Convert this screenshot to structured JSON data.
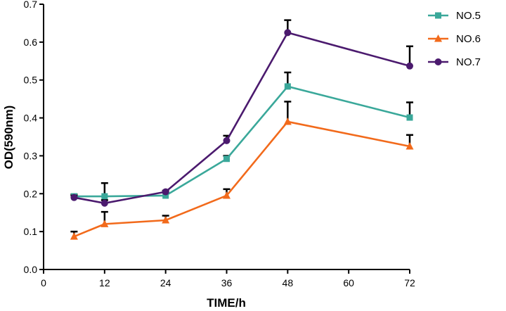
{
  "chart_data": {
    "type": "line",
    "title": "",
    "xlabel": "TIME/h",
    "ylabel": "OD(590nm)",
    "xlim": [
      0,
      72
    ],
    "ylim": [
      0,
      0.7
    ],
    "x_ticks": [
      0,
      12,
      24,
      36,
      48,
      60,
      72
    ],
    "x_tick_labels": [
      "0",
      "12",
      "24",
      "36",
      "48",
      "60",
      "72"
    ],
    "y_ticks": [
      0,
      0.1,
      0.2,
      0.3,
      0.4,
      0.5,
      0.6,
      0.7
    ],
    "y_tick_labels": [
      "0.0",
      "0.1",
      "0.2",
      "0.3",
      "0.4",
      "0.5",
      "0.6",
      "0.7"
    ],
    "grid": false,
    "legend_position": "top-right",
    "x": [
      6,
      12,
      24,
      36,
      48,
      72
    ],
    "series": [
      {
        "name": "NO.5",
        "color": "#3aa89a",
        "marker": "square",
        "values": [
          0.193,
          0.193,
          0.195,
          0.292,
          0.483,
          0.401
        ],
        "errors": [
          0.005,
          0.035,
          0.008,
          0.008,
          0.037,
          0.04
        ]
      },
      {
        "name": "NO.6",
        "color": "#f26a1b",
        "marker": "triangle",
        "values": [
          0.087,
          0.12,
          0.13,
          0.195,
          0.39,
          0.325
        ],
        "errors": [
          0.013,
          0.032,
          0.012,
          0.017,
          0.053,
          0.03
        ]
      },
      {
        "name": "NO.7",
        "color": "#4b1a6e",
        "marker": "circle",
        "values": [
          0.19,
          0.175,
          0.205,
          0.34,
          0.625,
          0.537
        ],
        "errors": [
          0.005,
          0.008,
          0.003,
          0.013,
          0.033,
          0.052
        ]
      }
    ]
  }
}
